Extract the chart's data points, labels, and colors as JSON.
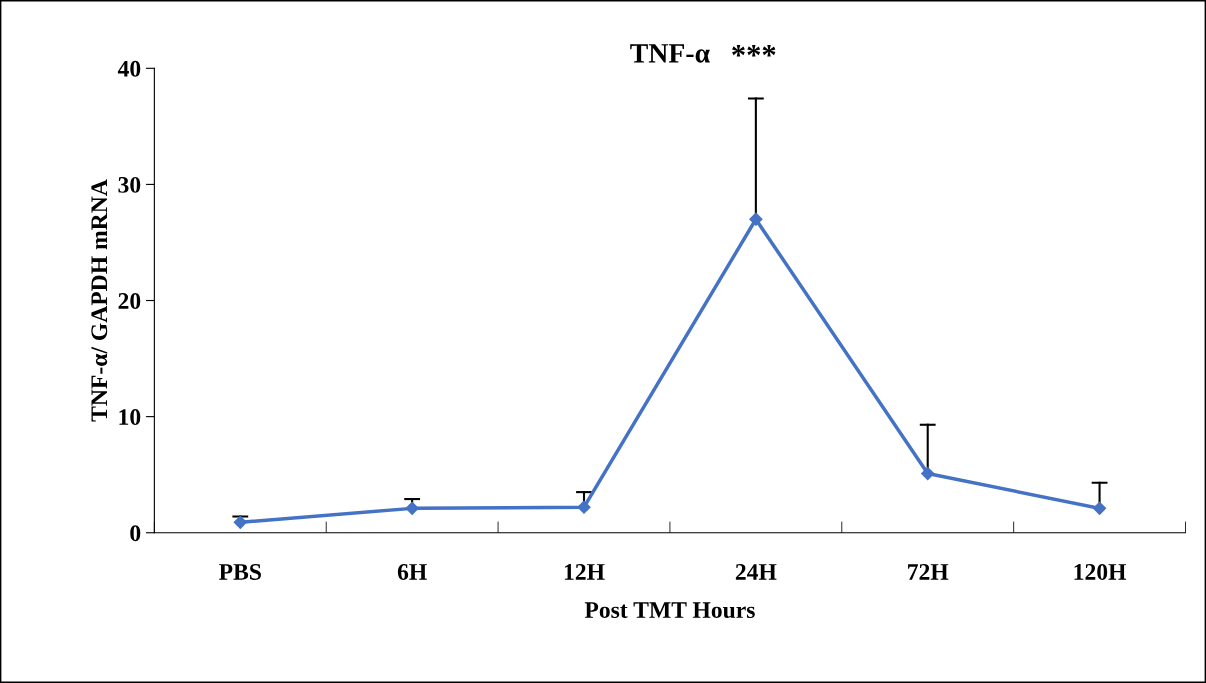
{
  "chart_data": {
    "type": "line",
    "title": "TNF-α",
    "xlabel": "Post TMT Hours",
    "ylabel": "TNF-α/ GAPDH mRNA",
    "categories": [
      "PBS",
      "6H",
      "12H",
      "24H",
      "72H",
      "120H"
    ],
    "series": [
      {
        "color": "#4472c4",
        "values": [
          0.9,
          2.1,
          2.2,
          27.0,
          5.1,
          2.1
        ],
        "errors": [
          [
            0.9,
            1.4
          ],
          [
            2.1,
            2.9
          ],
          [
            2.2,
            3.5
          ],
          [
            27.0,
            37.4
          ],
          [
            5.1,
            9.3
          ],
          [
            2.1,
            4.3
          ]
        ]
      }
    ],
    "ylim": [
      0,
      40
    ],
    "yticks": [
      0,
      10,
      20,
      30,
      40
    ],
    "annotations": [
      "***"
    ],
    "marker": "diamond",
    "line_style": "solid",
    "grid": false,
    "legend": false
  }
}
